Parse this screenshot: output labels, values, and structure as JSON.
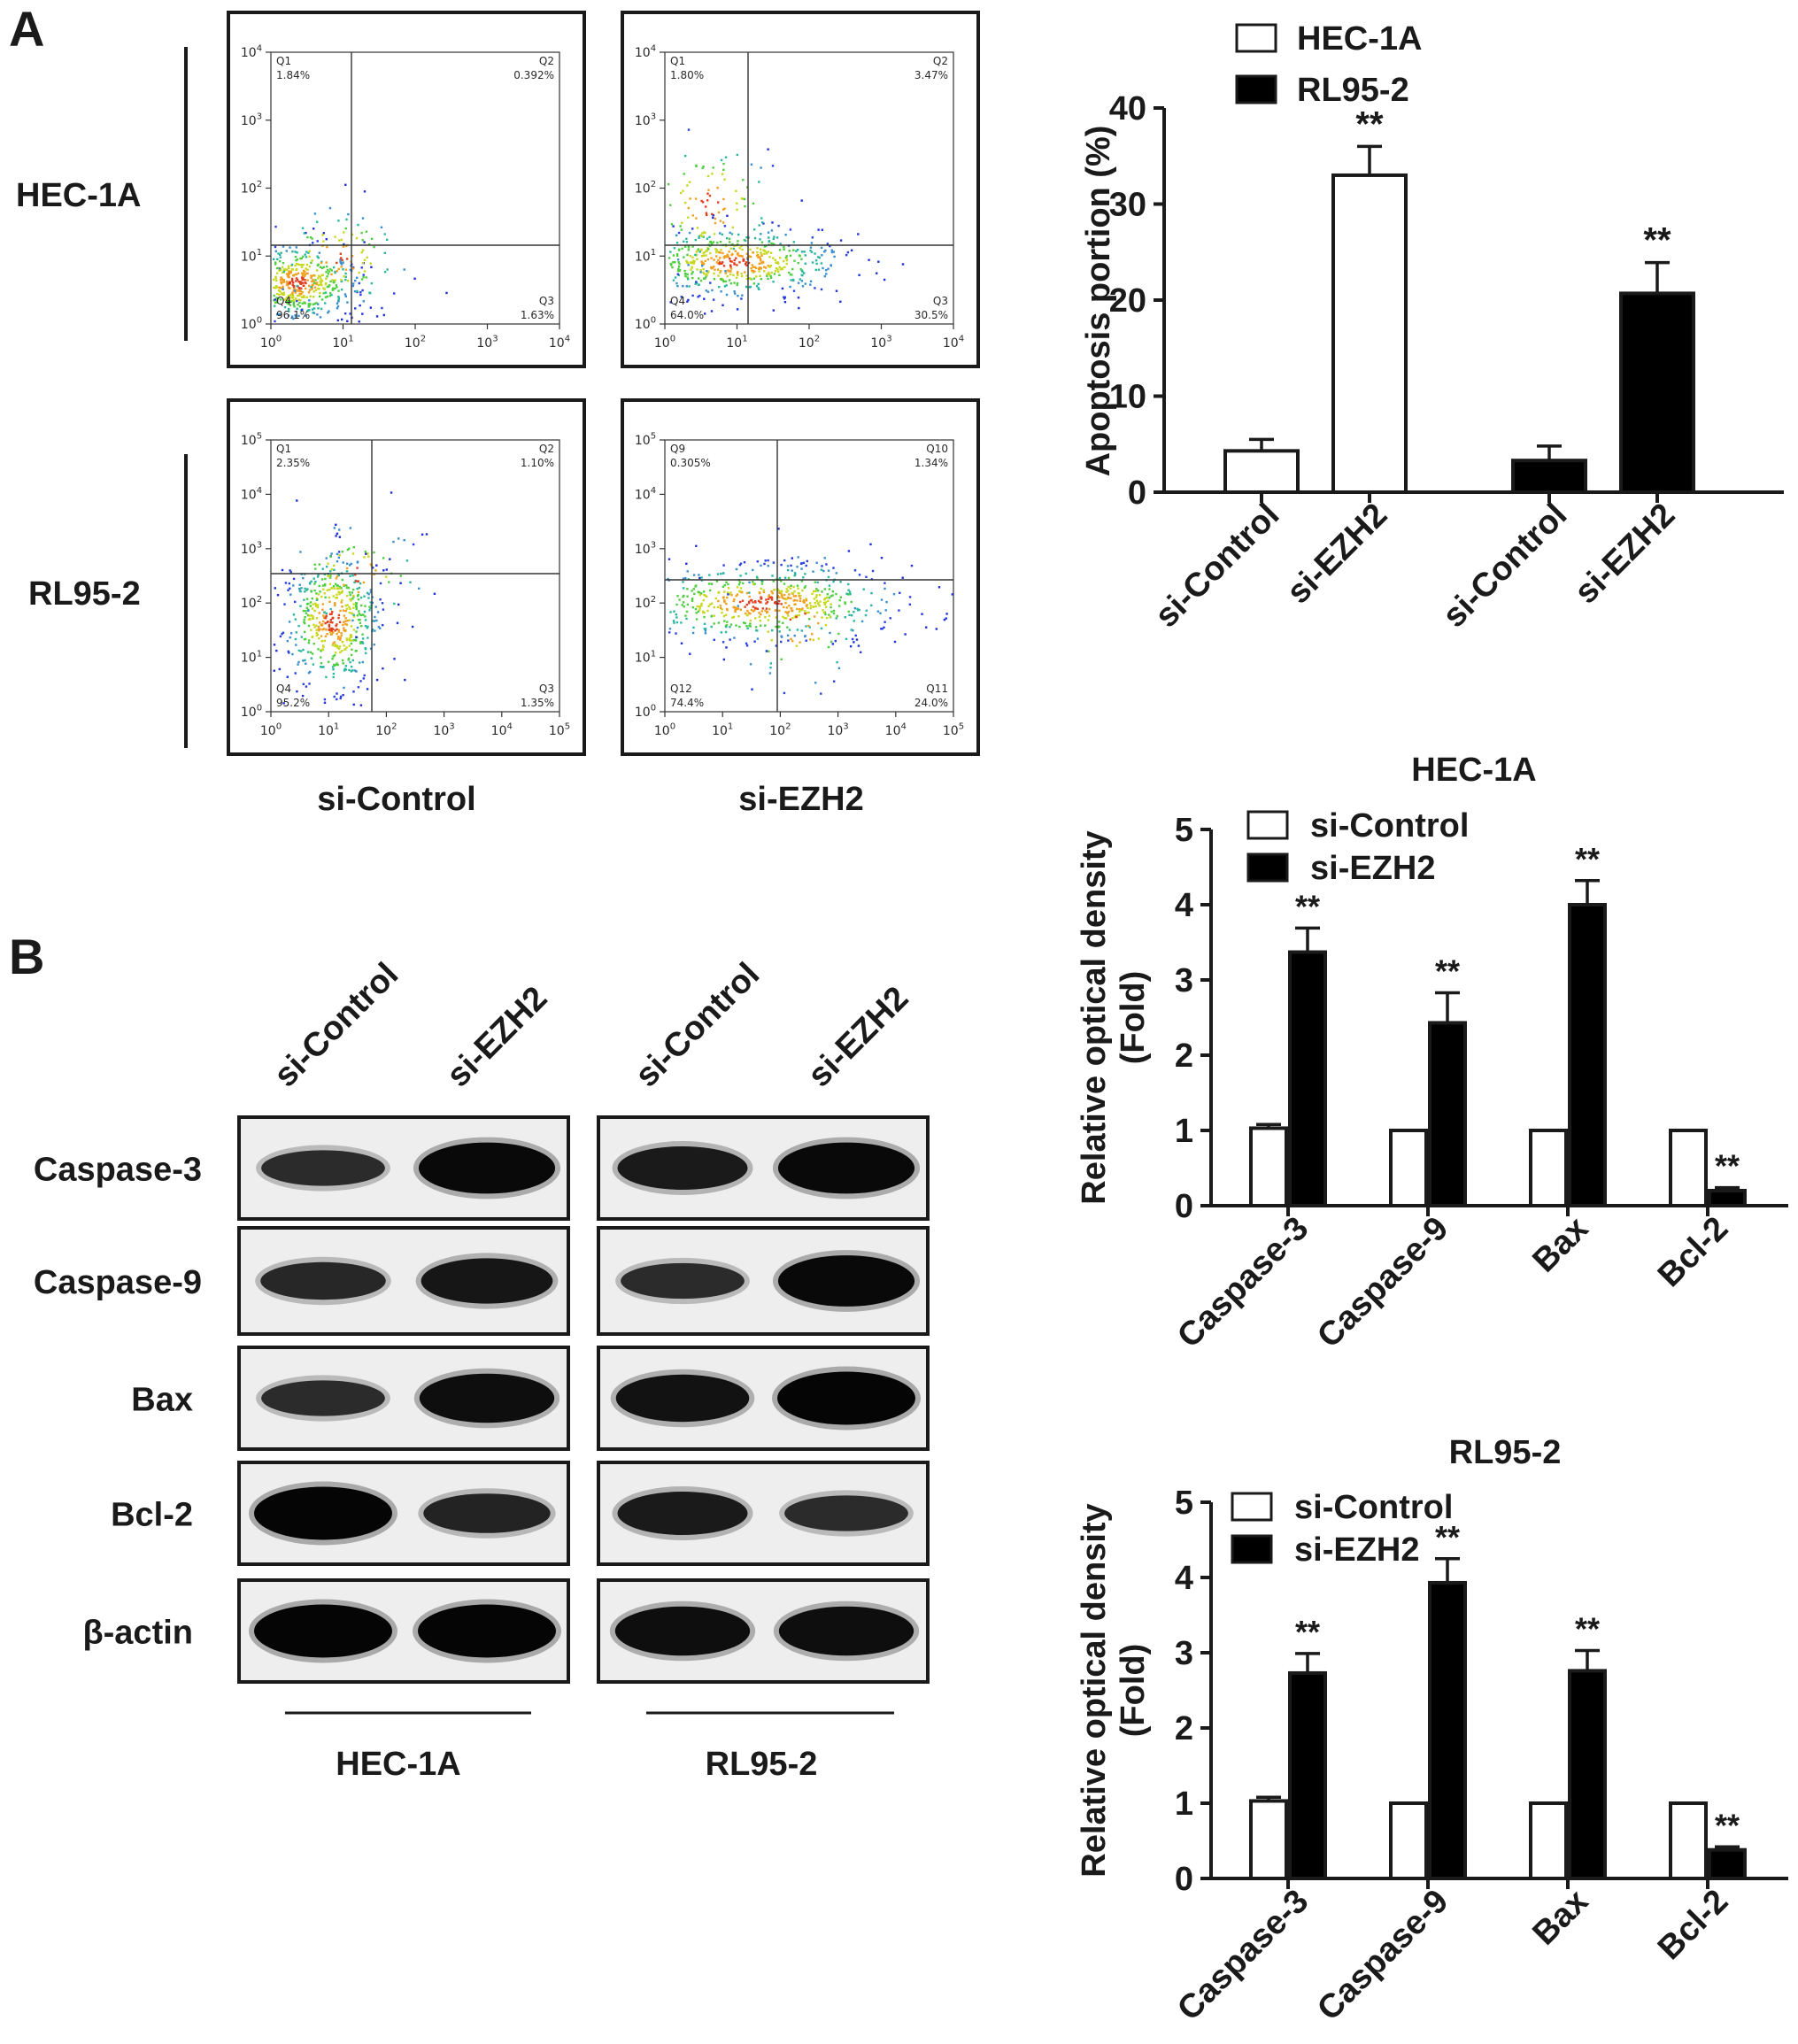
{
  "panels": {
    "a": "A",
    "b": "B"
  },
  "flow": {
    "row_labels": [
      "HEC-1A",
      "RL95-2"
    ],
    "col_labels": [
      "si-Control",
      "si-EZH2"
    ],
    "plots": [
      {
        "q_names": [
          "Q1",
          "Q2",
          "Q3",
          "Q4"
        ],
        "q_values": [
          "1.84%",
          "0.392%",
          "1.63%",
          "96.1%"
        ],
        "x_ticks": [
          "10^0",
          "10^1",
          "10^2",
          "10^3",
          "10^4"
        ],
        "y_ticks": [
          "10^0",
          "10^1",
          "10^2",
          "10^3",
          "10^4"
        ]
      },
      {
        "q_names": [
          "Q1",
          "Q2",
          "Q3",
          "Q4"
        ],
        "q_values": [
          "1.80%",
          "3.47%",
          "30.5%",
          "64.0%"
        ],
        "x_ticks": [
          "10^0",
          "10^1",
          "10^2",
          "10^3",
          "10^4"
        ],
        "y_ticks": [
          "10^0",
          "10^1",
          "10^2",
          "10^3",
          "10^4"
        ]
      },
      {
        "q_names": [
          "Q1",
          "Q2",
          "Q3",
          "Q4"
        ],
        "q_values": [
          "2.35%",
          "1.10%",
          "1.35%",
          "95.2%"
        ],
        "x_ticks": [
          "10^0",
          "10^1",
          "10^2",
          "10^3",
          "10^4",
          "10^5"
        ],
        "y_ticks": [
          "10^0",
          "10^1",
          "10^2",
          "10^3",
          "10^4",
          "10^5"
        ]
      },
      {
        "q_names": [
          "Q9",
          "Q10",
          "Q11",
          "Q12"
        ],
        "q_values": [
          "0.305%",
          "1.34%",
          "24.0%",
          "74.4%"
        ],
        "x_ticks": [
          "10^0",
          "10^1",
          "10^2",
          "10^3",
          "10^4",
          "10^5"
        ],
        "y_ticks": [
          "10^0",
          "10^1",
          "10^2",
          "10^3",
          "10^4",
          "10^5"
        ]
      }
    ]
  },
  "blot": {
    "lanes": [
      "si-Control",
      "si-EZH2",
      "si-Control",
      "si-EZH2"
    ],
    "proteins": [
      "Caspase-3",
      "Caspase-9",
      "Bax",
      "Bcl-2",
      "β-actin"
    ],
    "groups": [
      "HEC-1A",
      "RL95-2"
    ],
    "band_intensity": [
      [
        0.55,
        0.95,
        0.75,
        0.95
      ],
      [
        0.6,
        0.8,
        0.55,
        0.95
      ],
      [
        0.55,
        0.9,
        0.85,
        1.0
      ],
      [
        1.0,
        0.65,
        0.75,
        0.55
      ],
      [
        1.0,
        1.0,
        0.9,
        0.9
      ]
    ]
  },
  "chart_data": [
    {
      "type": "bar",
      "categories": [
        "si-Control",
        "si-EZH2",
        "si-Control",
        "si-EZH2"
      ],
      "colors": [
        "#ffffff",
        "#ffffff",
        "#000000",
        "#000000"
      ],
      "values": [
        4.3,
        33.0,
        3.3,
        20.7
      ],
      "errors": [
        1.2,
        3.0,
        1.5,
        3.2
      ],
      "significance": [
        "",
        "**",
        "",
        "**"
      ],
      "legend": [
        {
          "name": "HEC-1A",
          "color": "#ffffff"
        },
        {
          "name": "RL95-2",
          "color": "#000000"
        }
      ],
      "legend_position": "top",
      "title": "",
      "xlabel": "",
      "ylabel": "Apoptosis portion (%)",
      "ylim": [
        0,
        40
      ],
      "yticks": [
        0,
        10,
        20,
        30,
        40
      ]
    },
    {
      "type": "bar",
      "title": "HEC-1A",
      "categories": [
        "Caspase-3",
        "Caspase-9",
        "Bax",
        "Bcl-2"
      ],
      "series": [
        {
          "name": "si-Control",
          "color": "#ffffff",
          "values": [
            1.03,
            1.0,
            1.0,
            1.0
          ],
          "errors": [
            0.05,
            0,
            0,
            0
          ],
          "significance": [
            "",
            "",
            "",
            ""
          ]
        },
        {
          "name": "si-EZH2",
          "color": "#000000",
          "values": [
            3.37,
            2.43,
            4.0,
            0.2
          ],
          "errors": [
            0.32,
            0.4,
            0.32,
            0.04
          ],
          "significance": [
            "**",
            "**",
            "**",
            "**"
          ]
        }
      ],
      "legend_position": "top-left",
      "xlabel": "",
      "ylabel": "Relative optical density\n(Fold)",
      "ylim": [
        0,
        5
      ],
      "yticks": [
        0,
        1,
        2,
        3,
        4,
        5
      ]
    },
    {
      "type": "bar",
      "title": "RL95-2",
      "categories": [
        "Caspase-3",
        "Caspase-9",
        "Bax",
        "Bcl-2"
      ],
      "series": [
        {
          "name": "si-Control",
          "color": "#ffffff",
          "values": [
            1.03,
            1.0,
            1.0,
            1.0
          ],
          "errors": [
            0.05,
            0,
            0,
            0
          ],
          "significance": [
            "",
            "",
            "",
            ""
          ]
        },
        {
          "name": "si-EZH2",
          "color": "#000000",
          "values": [
            2.73,
            3.93,
            2.76,
            0.38
          ],
          "errors": [
            0.26,
            0.32,
            0.27,
            0.04
          ],
          "significance": [
            "**",
            "**",
            "**",
            "**"
          ]
        }
      ],
      "legend_position": "top-left",
      "xlabel": "",
      "ylabel": "Relative optical density\n(Fold)",
      "ylim": [
        0,
        5
      ],
      "yticks": [
        0,
        1,
        2,
        3,
        4,
        5
      ]
    }
  ]
}
